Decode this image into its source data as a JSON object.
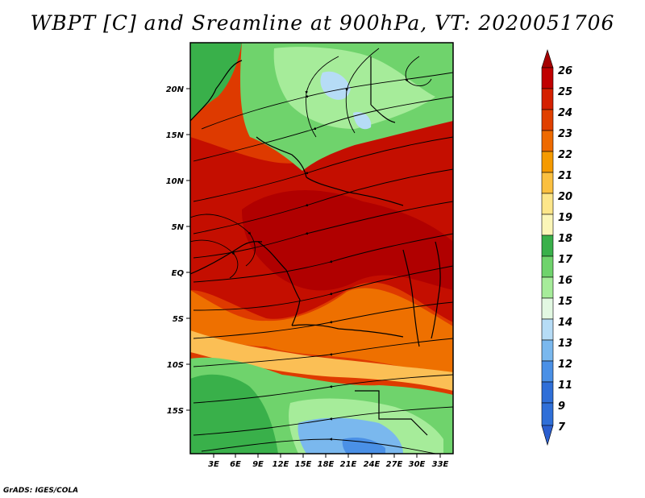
{
  "title": "WBPT [C] and Sreamline at 900hPa, VT: 2020051706",
  "footer": "GrADS: IGES/COLA",
  "map": {
    "lat_labels": [
      "20N",
      "15N",
      "10N",
      "5N",
      "EQ",
      "5S",
      "10S",
      "15S"
    ],
    "lon_labels": [
      "3E",
      "6E",
      "9E",
      "12E",
      "15E",
      "18E",
      "21E",
      "24E",
      "27E",
      "30E",
      "33E"
    ]
  },
  "colorbar": {
    "labels": [
      "26",
      "25",
      "24",
      "23",
      "22",
      "21",
      "20",
      "19",
      "18",
      "17",
      "16",
      "15",
      "14",
      "13",
      "12",
      "11",
      "9",
      "7"
    ],
    "colors": {
      "c26": "#a50000",
      "c25": "#c00000",
      "c24": "#d52000",
      "c23": "#e04000",
      "c22": "#ee6a00",
      "c21": "#f59a00",
      "c20": "#fbc040",
      "c19": "#fde68a",
      "c18": "#fbf6b8",
      "c17": "#39b04a",
      "c16": "#6fd36c",
      "c15": "#a6ec9a",
      "c14": "#e2f8e2",
      "c13": "#b6dcf6",
      "c12": "#7ab8ee",
      "c11": "#4a90e6",
      "c9": "#2f6fd8",
      "c7": "#2a5ecf"
    }
  }
}
